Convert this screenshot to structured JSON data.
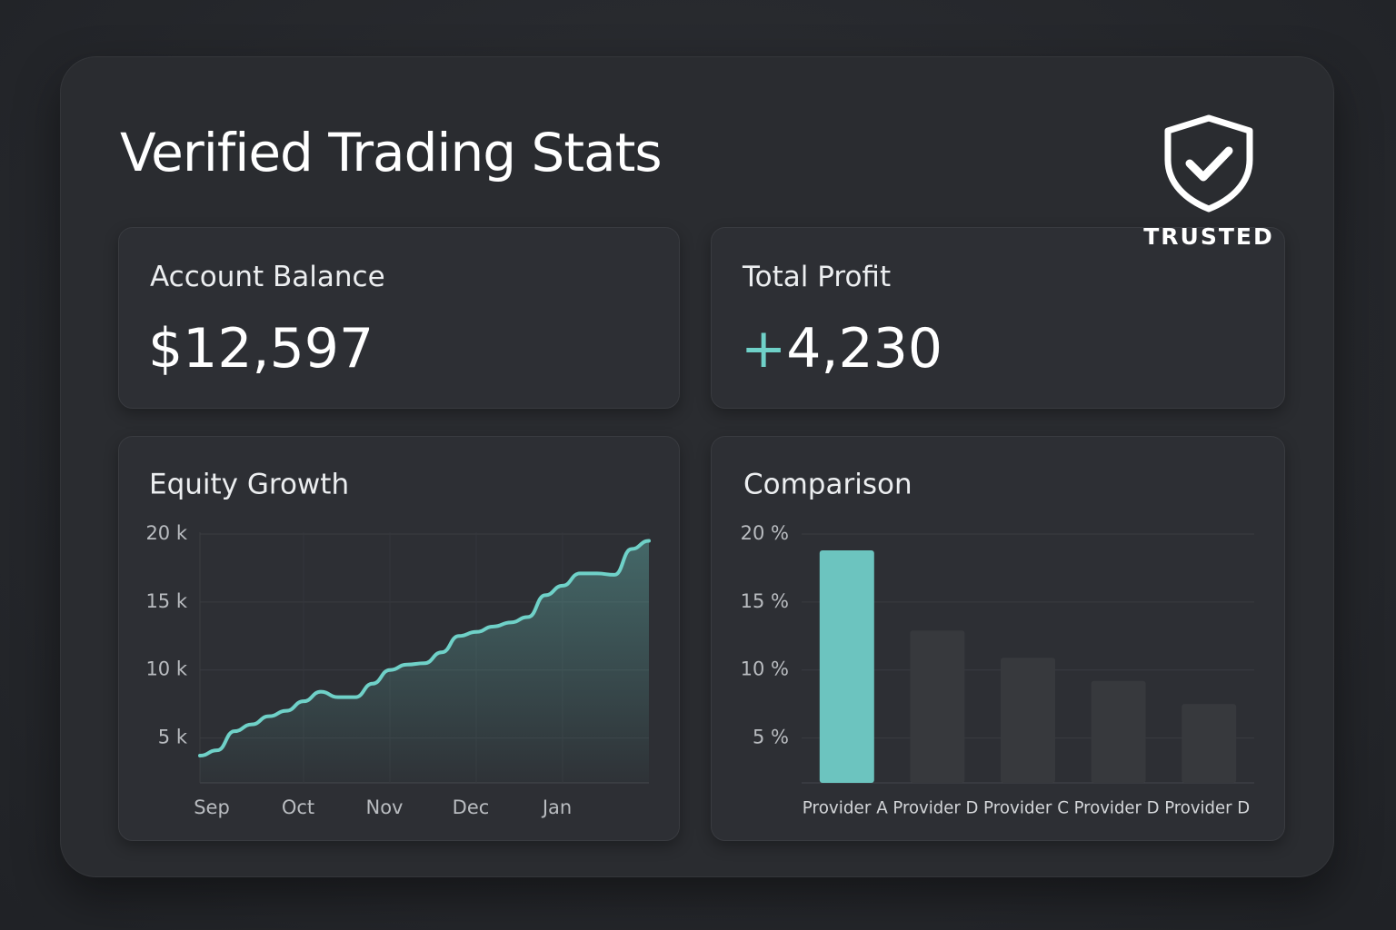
{
  "header": {
    "title": "Verified Trading Stats"
  },
  "badge": {
    "label": "TRUSTED"
  },
  "cards": {
    "balance": {
      "label": "Account Balance",
      "value": "$12,597"
    },
    "profit": {
      "label": "Total Profit",
      "sign": "+",
      "value": "4,230"
    }
  },
  "chart_data": [
    {
      "type": "line",
      "title": "Equity Growth",
      "color": "#6fd1c8",
      "categories": [
        null,
        "Sep",
        null,
        null,
        null,
        null,
        "Oct",
        null,
        null,
        null,
        null,
        "Nov",
        null,
        null,
        null,
        null,
        "Dec",
        null,
        null,
        null,
        null,
        "Jan",
        null,
        null,
        null,
        null,
        null
      ],
      "values": [
        3700,
        4100,
        5500,
        6000,
        6600,
        7000,
        7700,
        8400,
        8000,
        8000,
        9000,
        10000,
        10400,
        10500,
        11300,
        12500,
        12800,
        13200,
        13500,
        13900,
        15500,
        16200,
        17100,
        17100,
        17000,
        18900,
        19500
      ],
      "ylim": [
        1700,
        20000
      ],
      "yticks": [
        {
          "value": 5000,
          "label": "5 k"
        },
        {
          "value": 10000,
          "label": "10 k"
        },
        {
          "value": 15000,
          "label": "15 k"
        },
        {
          "value": 20000,
          "label": "20 k"
        }
      ],
      "grid": true
    },
    {
      "type": "bar",
      "title": "Comparison",
      "categories": [
        "Provider A",
        "Provider D",
        "Provider C",
        "Provider D",
        "Provider D"
      ],
      "values": [
        18.8,
        12.9,
        10.9,
        9.2,
        7.5
      ],
      "colors": [
        "#6cc4bf",
        "#37393d",
        "#37393d",
        "#37393d",
        "#37393d"
      ],
      "ylim": [
        1.7,
        20
      ],
      "yticks": [
        {
          "value": 5,
          "label": "5 %"
        },
        {
          "value": 10,
          "label": "10 %"
        },
        {
          "value": 15,
          "label": "15 %"
        },
        {
          "value": 20,
          "label": "20 %"
        }
      ],
      "grid": true
    }
  ]
}
